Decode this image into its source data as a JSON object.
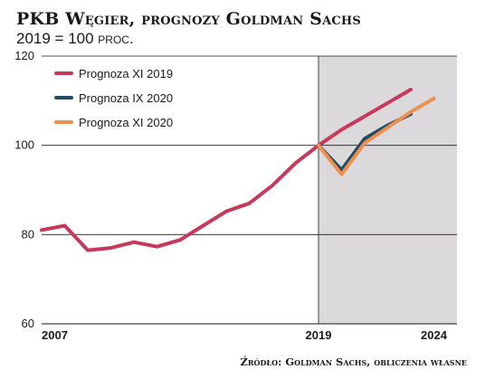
{
  "header": {
    "title": "PKB Węgier, prognozy Goldman Sachs",
    "subtitle": "2019 = 100 proc."
  },
  "source": "Źródło: Goldman Sachs, obliczenia własne",
  "colors": {
    "background": "#ffffff",
    "forecast_band": "#dcd9dc",
    "grid": "#1a1a1a",
    "xi_2019": "#c8385a",
    "ix_2020": "#1f4e63",
    "xi_2020": "#ef8f4f"
  },
  "chart_data": {
    "type": "line",
    "title": "PKB Węgier, prognozy Goldman Sachs",
    "subtitle": "2019 = 100 proc.",
    "x_range": [
      2007,
      2025
    ],
    "ylim": [
      60,
      120
    ],
    "y_ticks": [
      60,
      80,
      100,
      120
    ],
    "x_ticks": [
      2007,
      2019,
      2024
    ],
    "grid": "horizontal",
    "shaded_region": [
      2019,
      2025
    ],
    "legend_position": "top-left",
    "series": [
      {
        "name": "Prognoza XI 2019",
        "color": "#c8385a",
        "points": [
          [
            2007,
            81
          ],
          [
            2008,
            82
          ],
          [
            2009,
            76.5
          ],
          [
            2010,
            77
          ],
          [
            2011,
            78.3
          ],
          [
            2012,
            77.3
          ],
          [
            2013,
            78.8
          ],
          [
            2014,
            82
          ],
          [
            2015,
            85.2
          ],
          [
            2016,
            87
          ],
          [
            2017,
            91
          ],
          [
            2018,
            96
          ],
          [
            2019,
            100
          ],
          [
            2020,
            103.5
          ],
          [
            2021,
            106.5
          ],
          [
            2022,
            109.5
          ],
          [
            2023,
            112.5
          ]
        ]
      },
      {
        "name": "Prognoza IX 2020",
        "color": "#1f4e63",
        "points": [
          [
            2019,
            100
          ],
          [
            2020,
            94.5
          ],
          [
            2021,
            101.5
          ],
          [
            2022,
            104.5
          ],
          [
            2023,
            107
          ]
        ]
      },
      {
        "name": "Prognoza XI 2020",
        "color": "#ef8f4f",
        "points": [
          [
            2019,
            100
          ],
          [
            2020,
            93.5
          ],
          [
            2021,
            100.5
          ],
          [
            2022,
            104
          ],
          [
            2023,
            107.5
          ],
          [
            2024,
            110.5
          ]
        ]
      }
    ]
  }
}
